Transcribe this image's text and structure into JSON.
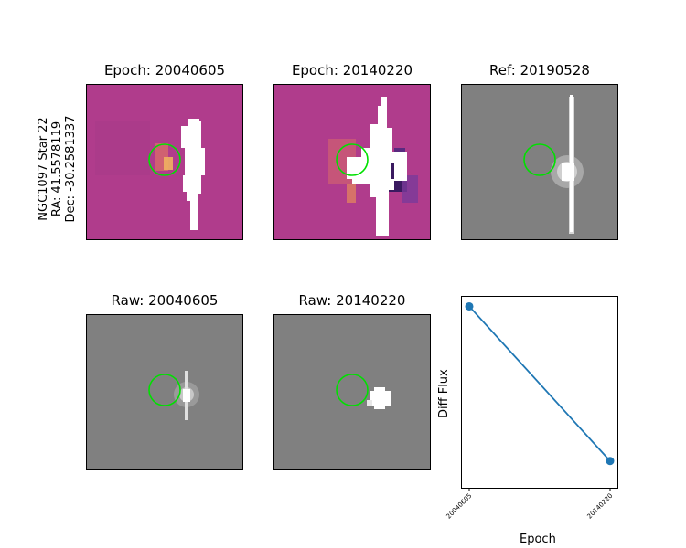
{
  "target_label": {
    "name": "NGC1097 Star 22",
    "ra": "RA: 41.5578119",
    "dec": "Dec: -30.2581337"
  },
  "panels": {
    "diff1_title": "Epoch: 20040605",
    "diff2_title": "Epoch: 20140220",
    "ref_title": "Ref: 20190528",
    "raw1_title": "Raw: 20040605",
    "raw2_title": "Raw: 20140220"
  },
  "colors": {
    "diff_background": "#b03c8c",
    "raw_background": "#808080",
    "aperture_circle": "#00e000",
    "line_color": "#1f77b4"
  },
  "chart_data": {
    "type": "line",
    "x": [
      "20040605",
      "20140220"
    ],
    "y_relative": [
      0.95,
      0.14
    ],
    "xlabel": "Epoch",
    "ylabel": "Diff Flux",
    "ytick_labels": "none"
  }
}
